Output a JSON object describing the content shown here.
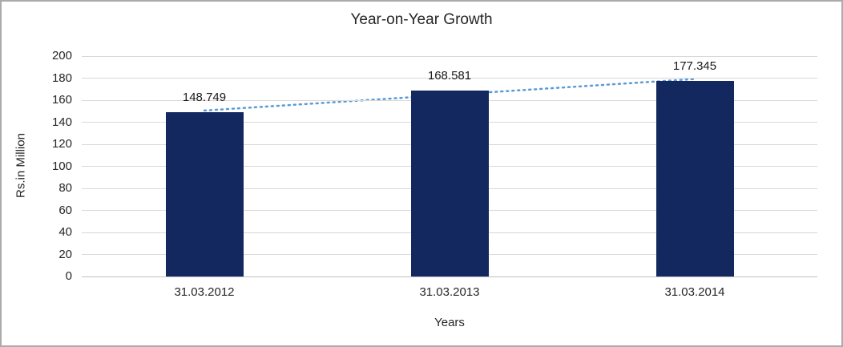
{
  "chart_data": {
    "type": "bar",
    "title": "Year-on-Year Growth",
    "categories": [
      "31.03.2012",
      "31.03.2013",
      "31.03.2014"
    ],
    "values": [
      148.749,
      168.581,
      177.345
    ],
    "value_labels": [
      "148.749",
      "168.581",
      "177.345"
    ],
    "xlabel": "Years",
    "ylabel": "Rs.in Million",
    "ylim": [
      0,
      200
    ],
    "ytick_step": 20,
    "grid": true,
    "legend": "none",
    "bar_color": "#12285e",
    "trendline": true,
    "trendline_style": "dotted",
    "trendline_color": "#5b9bd5",
    "gridline_color": "#d9d9d9",
    "axis_line_color": "#bfbfbf",
    "text_color": "#262626",
    "frame_border_color": "#ababab"
  }
}
